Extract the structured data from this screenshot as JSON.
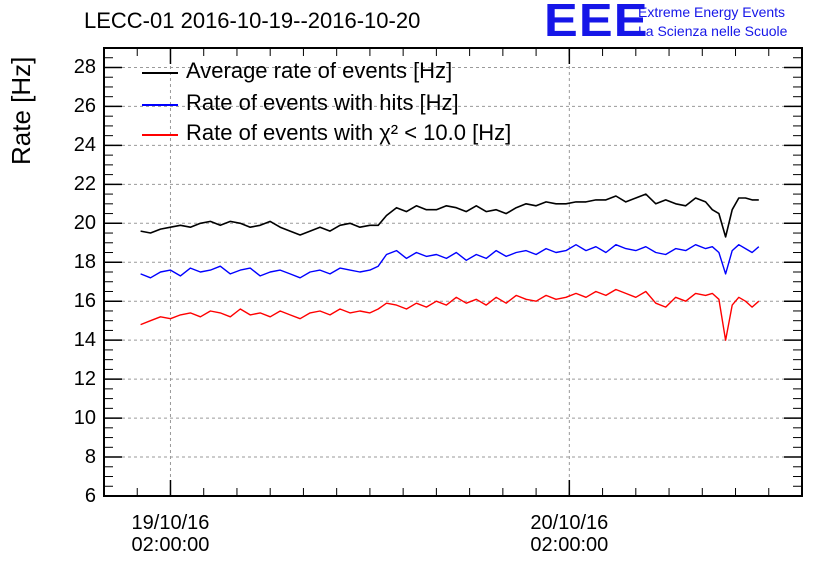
{
  "title": "LECC-01 2016-10-19--2016-10-20",
  "logo": {
    "mark": "EEE",
    "line1": "Extreme Energy Events",
    "line2": "La Scienza nelle Scuole",
    "color": "#1616e8"
  },
  "chart_data": {
    "type": "line",
    "ylabel": "Rate [Hz]",
    "xlabel": "",
    "ylim": [
      6,
      29
    ],
    "yticks": [
      "6",
      "8",
      "10",
      "12",
      "14",
      "16",
      "18",
      "20",
      "22",
      "24",
      "26",
      "28"
    ],
    "xlim_hours": [
      -4,
      38
    ],
    "xticks": [
      {
        "hour": 0,
        "line1": "19/10/16",
        "line2": "02:00:00"
      },
      {
        "hour": 24,
        "line1": "20/10/16",
        "line2": "02:00:00"
      }
    ],
    "grid": true,
    "legend_position": "top-left",
    "series": [
      {
        "name": "Average rate of events [Hz]",
        "color": "#000000",
        "x_hours": [
          -1.8,
          -1.2,
          -0.6,
          0,
          0.6,
          1.2,
          1.8,
          2.4,
          3.0,
          3.6,
          4.2,
          4.8,
          5.4,
          6.0,
          6.6,
          7.2,
          7.8,
          8.4,
          9.0,
          9.6,
          10.2,
          10.8,
          11.4,
          12.0,
          12.5,
          13.0,
          13.6,
          14.2,
          14.8,
          15.4,
          16.0,
          16.6,
          17.2,
          17.8,
          18.4,
          19.0,
          19.6,
          20.2,
          20.8,
          21.4,
          22.0,
          22.6,
          23.2,
          23.8,
          24.4,
          25.0,
          25.6,
          26.2,
          26.8,
          27.4,
          28.0,
          28.6,
          29.2,
          29.8,
          30.4,
          31.0,
          31.6,
          32.2,
          32.6,
          33.0,
          33.4,
          33.8,
          34.2,
          34.6,
          35.0,
          35.4
        ],
        "values": [
          19.6,
          19.5,
          19.7,
          19.8,
          19.9,
          19.8,
          20.0,
          20.1,
          19.9,
          20.1,
          20.0,
          19.8,
          19.9,
          20.1,
          19.8,
          19.6,
          19.4,
          19.6,
          19.8,
          19.6,
          19.9,
          20.0,
          19.8,
          19.9,
          19.9,
          20.4,
          20.8,
          20.6,
          20.9,
          20.7,
          20.7,
          20.9,
          20.8,
          20.6,
          20.9,
          20.6,
          20.7,
          20.5,
          20.8,
          21.0,
          20.9,
          21.1,
          21.0,
          21.0,
          21.1,
          21.1,
          21.2,
          21.2,
          21.4,
          21.1,
          21.3,
          21.5,
          21.0,
          21.2,
          21.0,
          20.9,
          21.3,
          21.1,
          20.7,
          20.5,
          19.3,
          20.7,
          21.3,
          21.3,
          21.2,
          21.2
        ]
      },
      {
        "name": "Rate of events with hits [Hz]",
        "color": "#0000ff",
        "x_hours": [
          -1.8,
          -1.2,
          -0.6,
          0,
          0.6,
          1.2,
          1.8,
          2.4,
          3.0,
          3.6,
          4.2,
          4.8,
          5.4,
          6.0,
          6.6,
          7.2,
          7.8,
          8.4,
          9.0,
          9.6,
          10.2,
          10.8,
          11.4,
          12.0,
          12.5,
          13.0,
          13.6,
          14.2,
          14.8,
          15.4,
          16.0,
          16.6,
          17.2,
          17.8,
          18.4,
          19.0,
          19.6,
          20.2,
          20.8,
          21.4,
          22.0,
          22.6,
          23.2,
          23.8,
          24.4,
          25.0,
          25.6,
          26.2,
          26.8,
          27.4,
          28.0,
          28.6,
          29.2,
          29.8,
          30.4,
          31.0,
          31.6,
          32.2,
          32.6,
          33.0,
          33.4,
          33.8,
          34.2,
          34.6,
          35.0,
          35.4
        ],
        "values": [
          17.4,
          17.2,
          17.5,
          17.6,
          17.3,
          17.7,
          17.5,
          17.6,
          17.8,
          17.4,
          17.6,
          17.7,
          17.3,
          17.5,
          17.6,
          17.4,
          17.2,
          17.5,
          17.6,
          17.4,
          17.7,
          17.6,
          17.5,
          17.6,
          17.8,
          18.4,
          18.6,
          18.2,
          18.5,
          18.3,
          18.4,
          18.2,
          18.5,
          18.1,
          18.4,
          18.2,
          18.6,
          18.3,
          18.5,
          18.6,
          18.4,
          18.7,
          18.5,
          18.6,
          18.9,
          18.6,
          18.8,
          18.5,
          18.9,
          18.7,
          18.6,
          18.8,
          18.5,
          18.4,
          18.7,
          18.6,
          18.9,
          18.7,
          18.8,
          18.5,
          17.4,
          18.6,
          18.9,
          18.7,
          18.5,
          18.8
        ]
      },
      {
        "name": "Rate of events with χ² < 10.0 [Hz]",
        "color": "#ff0000",
        "x_hours": [
          -1.8,
          -1.2,
          -0.6,
          0,
          0.6,
          1.2,
          1.8,
          2.4,
          3.0,
          3.6,
          4.2,
          4.8,
          5.4,
          6.0,
          6.6,
          7.2,
          7.8,
          8.4,
          9.0,
          9.6,
          10.2,
          10.8,
          11.4,
          12.0,
          12.5,
          13.0,
          13.6,
          14.2,
          14.8,
          15.4,
          16.0,
          16.6,
          17.2,
          17.8,
          18.4,
          19.0,
          19.6,
          20.2,
          20.8,
          21.4,
          22.0,
          22.6,
          23.2,
          23.8,
          24.4,
          25.0,
          25.6,
          26.2,
          26.8,
          27.4,
          28.0,
          28.6,
          29.2,
          29.8,
          30.4,
          31.0,
          31.6,
          32.2,
          32.6,
          33.0,
          33.4,
          33.8,
          34.2,
          34.6,
          35.0,
          35.4
        ],
        "values": [
          14.8,
          15.0,
          15.2,
          15.1,
          15.3,
          15.4,
          15.2,
          15.5,
          15.4,
          15.2,
          15.6,
          15.3,
          15.4,
          15.2,
          15.5,
          15.3,
          15.1,
          15.4,
          15.5,
          15.3,
          15.6,
          15.4,
          15.5,
          15.4,
          15.6,
          15.9,
          15.8,
          15.6,
          15.9,
          15.7,
          16.0,
          15.8,
          16.2,
          15.9,
          16.1,
          15.8,
          16.2,
          15.9,
          16.3,
          16.1,
          16.0,
          16.3,
          16.1,
          16.2,
          16.4,
          16.2,
          16.5,
          16.3,
          16.6,
          16.4,
          16.2,
          16.5,
          15.9,
          15.7,
          16.2,
          16.0,
          16.4,
          16.3,
          16.4,
          16.1,
          14.0,
          15.8,
          16.2,
          16.0,
          15.7,
          16.0
        ]
      }
    ]
  }
}
